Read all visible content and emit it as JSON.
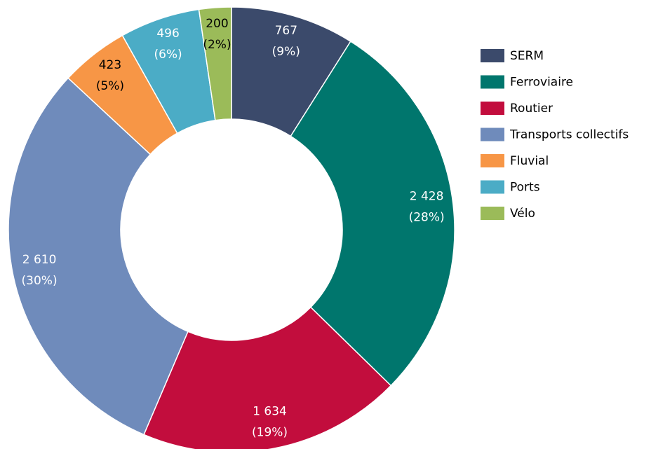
{
  "chart_data": {
    "type": "donut",
    "categories": [
      "SERM",
      "Ferroviaire",
      "Routier",
      "Transports collectifs",
      "Fluvial",
      "Ports",
      "Vélo"
    ],
    "values": [
      767,
      2428,
      1634,
      2610,
      423,
      496,
      200
    ],
    "value_labels": [
      "767\n(9%)",
      "2 428\n(28%)",
      "1 634\n(19%)",
      "2 610\n(30%)",
      "423\n(5%)",
      "496\n(6%)",
      "200\n(2%)"
    ],
    "colors": [
      "#3b4a6b",
      "#00766d",
      "#c20d3d",
      "#6f8bbb",
      "#f79646",
      "#4bacc6",
      "#9bbb59"
    ],
    "label_colors": [
      "#ffffff",
      "#ffffff",
      "#ffffff",
      "#ffffff",
      "#000000",
      "#ffffff",
      "#000000"
    ],
    "legend": "right"
  }
}
